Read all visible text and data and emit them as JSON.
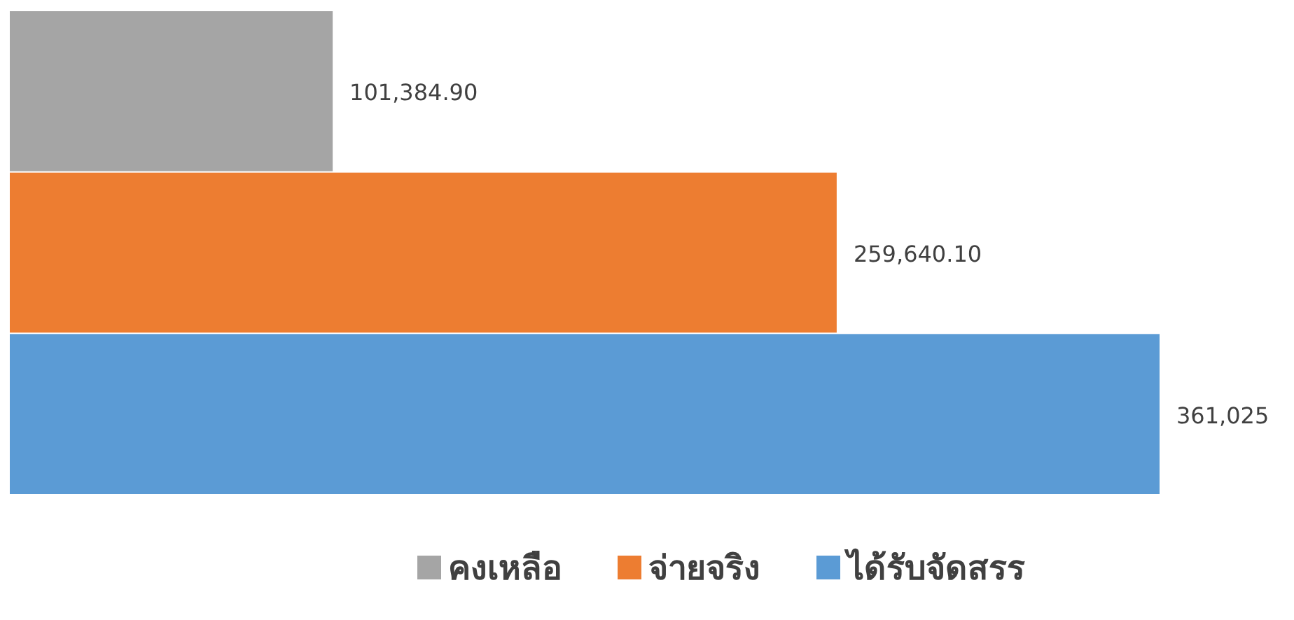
{
  "chart_data": {
    "type": "bar",
    "orientation": "horizontal",
    "categories": [
      null
    ],
    "legend": "bottom",
    "series": [
      {
        "name": "คงเหลือ",
        "color": "#a5a5a5",
        "values": [
          101384.9
        ],
        "value_labels": [
          "101,384.90"
        ]
      },
      {
        "name": "จ่ายจริง",
        "color": "#ed7d31",
        "values": [
          259640.1
        ],
        "value_labels": [
          "259,640.10"
        ]
      },
      {
        "name": "ได้รับจัดสรร",
        "color": "#5b9bd5",
        "values": [
          361025
        ],
        "value_labels": [
          "361,025"
        ]
      }
    ]
  }
}
